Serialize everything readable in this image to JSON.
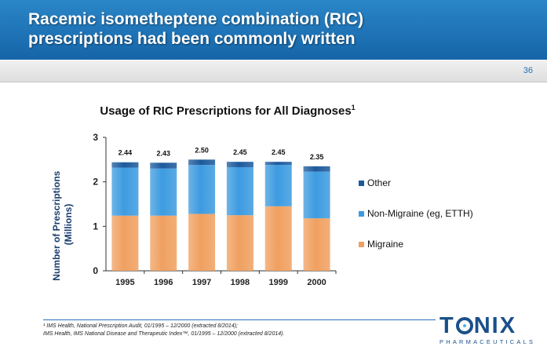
{
  "slide": {
    "title_line1": "Racemic isometheptene combination (RIC)",
    "title_line2": "prescriptions had been commonly written",
    "page_number": "36",
    "footnote_line1": "¹ IMS Health, National Prescription Audit, 01/1995 – 12/2000 (extracted 8/2014);",
    "footnote_line2": "IMS Health, IMS National Disease and Therapeutic Index™, 01/1995 – 12/2000 (extracted 8/2014)."
  },
  "logo": {
    "main_text_left": "T",
    "main_text_right": "NIX",
    "sub_text": "PHARMACEUTICALS",
    "color": "#1a4f8a"
  },
  "chart_data": {
    "type": "bar",
    "stacked": true,
    "title": "Usage of RIC Prescriptions for All Diagnoses",
    "title_superscript": "1",
    "xlabel": "",
    "ylabel": "Number of Prescriptions (Millions)",
    "ylabel_line1": "Number of Prescriptions",
    "ylabel_line2": "(Millions)",
    "ylim": [
      0,
      3
    ],
    "yticks": [
      "0",
      "1",
      "2",
      "3"
    ],
    "categories": [
      "1995",
      "1996",
      "1997",
      "1998",
      "1999",
      "2000"
    ],
    "totals": [
      "2.44",
      "2.43",
      "2.50",
      "2.45",
      "2.45",
      "2.35"
    ],
    "series": [
      {
        "name": "Migraine",
        "values": [
          1.24,
          1.24,
          1.28,
          1.25,
          1.45,
          1.18
        ],
        "color": "#f0a060"
      },
      {
        "name": "Non-Migraine (eg, ETTH)",
        "values": [
          1.08,
          1.06,
          1.1,
          1.08,
          0.93,
          1.05
        ],
        "color": "#3d9be0"
      },
      {
        "name": "Other",
        "values": [
          0.12,
          0.13,
          0.12,
          0.12,
          0.07,
          0.12
        ],
        "color": "#1d5a9c"
      }
    ],
    "legend_order": [
      "Other",
      "Non-Migraine (eg, ETTH)",
      "Migraine"
    ],
    "legend_position": "right",
    "grid": false
  }
}
